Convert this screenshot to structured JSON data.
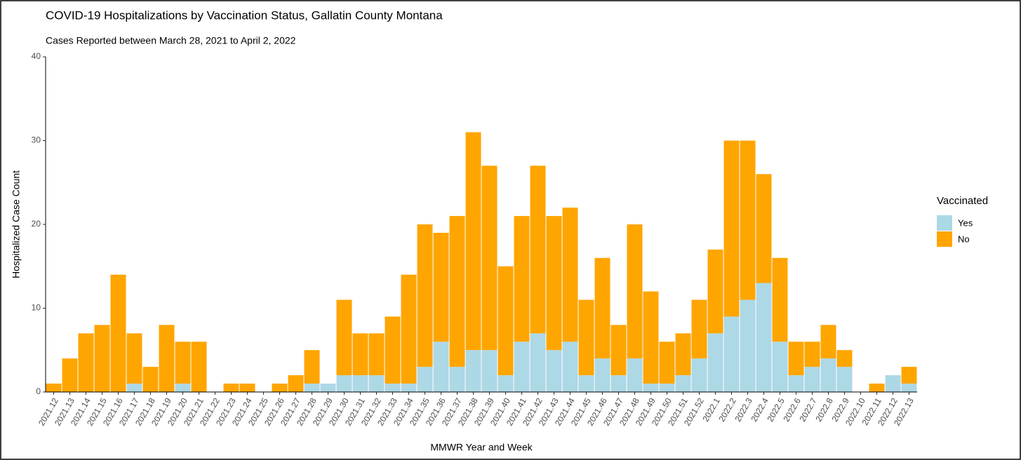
{
  "chart_data": {
    "type": "stacked_bar",
    "title": "COVID-19 Hospitalizations by Vaccination Status, Gallatin County Montana",
    "subtitle": "Cases Reported between March 28, 2021 to April 2, 2022",
    "x_label": "MMWR Year and Week",
    "y_label": "Hospitalized Case Count",
    "legend_title": "Vaccinated",
    "legend": "right",
    "grid": false,
    "categories": [
      "2021.12",
      "2021.13",
      "2021.14",
      "2021.15",
      "2021.16",
      "2021.17",
      "2021.18",
      "2021.19",
      "2021.20",
      "2021.21",
      "2021.22",
      "2021.23",
      "2021.24",
      "2021.25",
      "2021.26",
      "2021.27",
      "2021.28",
      "2021.29",
      "2021.30",
      "2021.31",
      "2021.32",
      "2021.33",
      "2021.34",
      "2021.35",
      "2021.36",
      "2021.37",
      "2021.38",
      "2021.39",
      "2021.40",
      "2021.41",
      "2021.42",
      "2021.43",
      "2021.44",
      "2021.45",
      "2021.46",
      "2021.47",
      "2021.48",
      "2021.49",
      "2021.50",
      "2021.51",
      "2021.52",
      "2022.1",
      "2022.2",
      "2022.3",
      "2022.4",
      "2022.5",
      "2022.6",
      "2022.7",
      "2022.8",
      "2022.9",
      "2022.10",
      "2022.11",
      "2022.12",
      "2022.13"
    ],
    "series": [
      {
        "name": "Yes",
        "color": "#add8e6",
        "values": [
          0,
          0,
          0,
          0,
          0,
          1,
          0,
          0,
          1,
          0,
          0,
          0,
          0,
          0,
          0,
          0,
          1,
          1,
          2,
          2,
          2,
          1,
          1,
          3,
          6,
          3,
          5,
          5,
          2,
          6,
          7,
          5,
          6,
          2,
          4,
          2,
          4,
          1,
          1,
          2,
          4,
          7,
          9,
          11,
          13,
          6,
          2,
          3,
          4,
          3,
          0,
          0,
          2,
          1
        ]
      },
      {
        "name": "No",
        "color": "#ffa500",
        "values": [
          1,
          4,
          7,
          8,
          14,
          6,
          3,
          8,
          5,
          6,
          0,
          1,
          1,
          0,
          1,
          2,
          4,
          0,
          9,
          5,
          5,
          8,
          13,
          17,
          13,
          18,
          26,
          22,
          13,
          15,
          20,
          16,
          16,
          9,
          12,
          6,
          16,
          11,
          5,
          5,
          7,
          10,
          21,
          19,
          13,
          10,
          4,
          3,
          4,
          2,
          0,
          1,
          0,
          2
        ]
      }
    ],
    "ylim": [
      0,
      40
    ],
    "yticks": [
      0,
      10,
      20,
      30,
      40
    ]
  }
}
